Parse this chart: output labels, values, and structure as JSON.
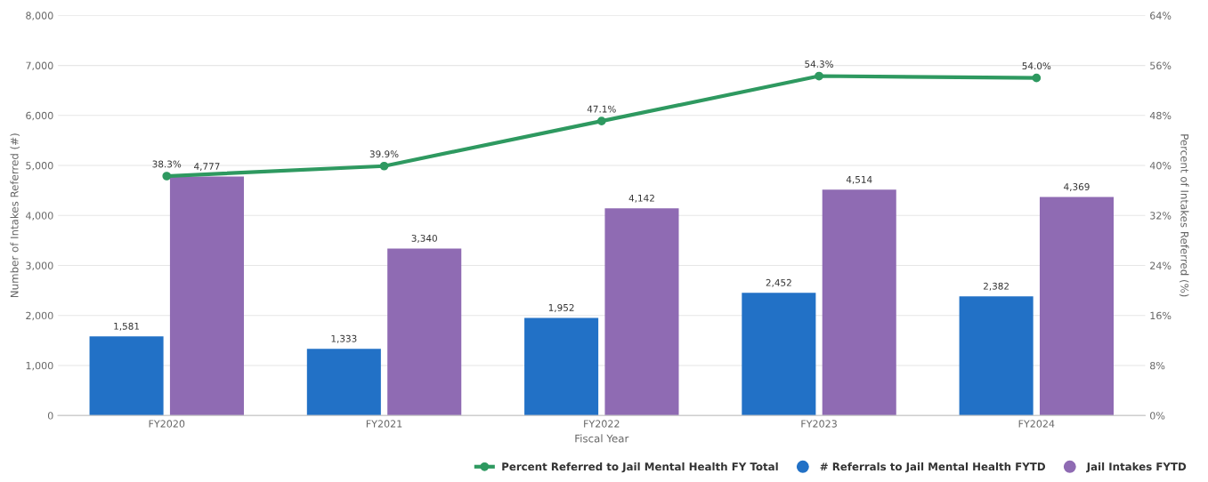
{
  "chart_data": {
    "type": "bar",
    "categories": [
      "FY2020",
      "FY2021",
      "FY2022",
      "FY2023",
      "FY2024"
    ],
    "xlabel": "Fiscal Year",
    "ylabel": "Number of Intakes Referred (#)",
    "y2label": "Percent of Intakes Referred (%)",
    "ylim": [
      0,
      8000
    ],
    "yticks": [
      {
        "value": 0,
        "label": "0"
      },
      {
        "value": 1000,
        "label": "1,000"
      },
      {
        "value": 2000,
        "label": "2,000"
      },
      {
        "value": 3000,
        "label": "3,000"
      },
      {
        "value": 4000,
        "label": "4,000"
      },
      {
        "value": 5000,
        "label": "5,000"
      },
      {
        "value": 6000,
        "label": "6,000"
      },
      {
        "value": 7000,
        "label": "7,000"
      },
      {
        "value": 8000,
        "label": "8,000"
      }
    ],
    "y2lim": [
      0,
      64
    ],
    "y2ticks": [
      {
        "value": 0,
        "label": "0%"
      },
      {
        "value": 8,
        "label": "8%"
      },
      {
        "value": 16,
        "label": "16%"
      },
      {
        "value": 24,
        "label": "24%"
      },
      {
        "value": 32,
        "label": "32%"
      },
      {
        "value": 40,
        "label": "40%"
      },
      {
        "value": 48,
        "label": "48%"
      },
      {
        "value": 56,
        "label": "56%"
      },
      {
        "value": 64,
        "label": "64%"
      }
    ],
    "grid": "y",
    "legend": "bottom right",
    "series": [
      {
        "name": "Percent Referred to Jail Mental Health FY Total",
        "type": "line",
        "axis": "y2",
        "color": "#2e9960",
        "marker": "circle",
        "values": [
          38.3,
          39.9,
          47.1,
          54.3,
          54.0
        ],
        "value_labels": [
          "38.3%",
          "39.9%",
          "47.1%",
          "54.3%",
          "54.0%"
        ]
      },
      {
        "name": "# Referrals to Jail Mental Health FYTD",
        "color": "#2271c6",
        "values": [
          1581,
          1333,
          1952,
          2452,
          2382
        ],
        "value_labels": [
          "1,581",
          "1,333",
          "1,952",
          "2,452",
          "2,382"
        ]
      },
      {
        "name": "Jail Intakes FYTD",
        "color": "#8f6bb3",
        "values": [
          4777,
          3340,
          4142,
          4514,
          4369
        ],
        "value_labels": [
          "4,777",
          "3,340",
          "4,142",
          "4,514",
          "4,369"
        ]
      }
    ]
  }
}
